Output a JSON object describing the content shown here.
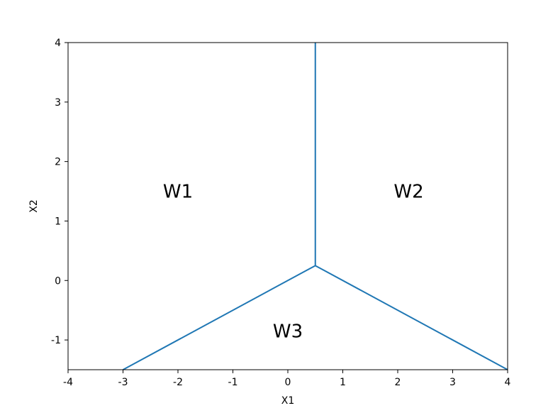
{
  "chart_data": {
    "type": "line",
    "title": "",
    "xlabel": "X1",
    "ylabel": "X2",
    "xlim": [
      -4,
      4
    ],
    "ylim": [
      -1.5,
      4
    ],
    "xticks": [
      -4,
      -3,
      -2,
      -1,
      0,
      1,
      2,
      3,
      4
    ],
    "xtick_labels": [
      "-4",
      "-3",
      "-2",
      "-1",
      "0",
      "1",
      "2",
      "3",
      "4"
    ],
    "yticks": [
      -1,
      0,
      1,
      2,
      3,
      4
    ],
    "ytick_labels": [
      "-1",
      "0",
      "1",
      "2",
      "3",
      "4"
    ],
    "grid": false,
    "line_color": "#1f77b4",
    "series": [
      {
        "x": [
          0.5,
          0.5
        ],
        "y": [
          0.25,
          4
        ]
      },
      {
        "x": [
          0.5,
          -3
        ],
        "y": [
          0.25,
          -1.5
        ]
      },
      {
        "x": [
          0.5,
          4
        ],
        "y": [
          0.25,
          -1.5
        ]
      }
    ],
    "annotations": [
      {
        "text": "W1",
        "x": -2.0,
        "y": 1.5
      },
      {
        "text": "W2",
        "x": 2.2,
        "y": 1.5
      },
      {
        "text": "W3",
        "x": 0.0,
        "y": -0.85
      }
    ]
  }
}
